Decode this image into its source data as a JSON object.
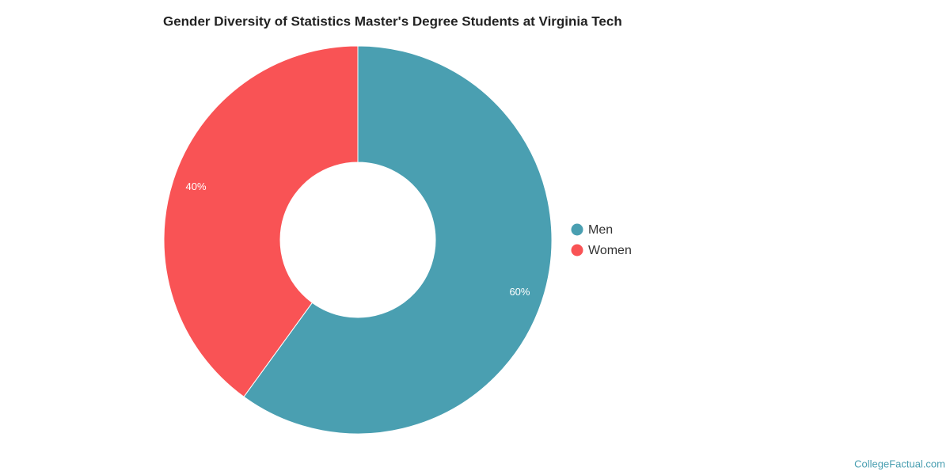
{
  "chart_data": {
    "type": "donut",
    "title": "Gender Diversity of Statistics Master's Degree Students at Virginia Tech",
    "categories": [
      "Men",
      "Women"
    ],
    "values": [
      60,
      40
    ],
    "value_labels": [
      "60%",
      "40%"
    ],
    "colors": [
      "#4a9fb1",
      "#f95355"
    ],
    "legend": "right",
    "credit": "CollegeFactual.com"
  }
}
